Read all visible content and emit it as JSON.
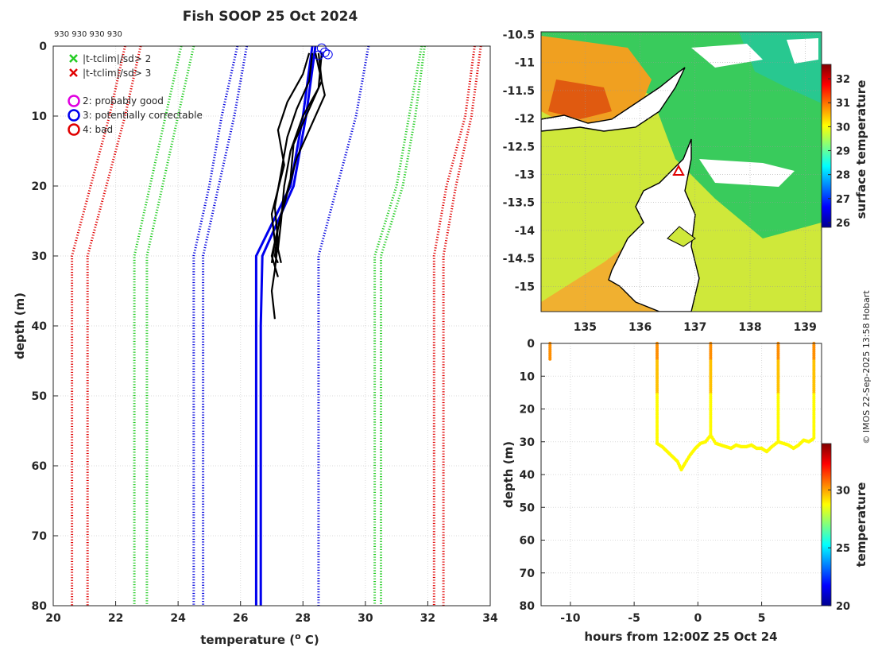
{
  "chart_data": [
    {
      "id": "profile",
      "type": "line",
      "title": "Fish SOOP 25 Oct 2024",
      "xlabel": "temperature (",
      "xlabel_unit": "o",
      "xlabel_end": " C)",
      "ylabel": "depth (m)",
      "xlim": [
        20,
        34
      ],
      "ylim": [
        0,
        80
      ],
      "x_ticks": [
        "20",
        "22",
        "24",
        "26",
        "28",
        "30",
        "32",
        "34"
      ],
      "y_ticks": [
        "0",
        "10",
        "20",
        "30",
        "40",
        "50",
        "60",
        "70",
        "80"
      ],
      "platform_labels": "930 930 930 930",
      "legend": {
        "flag_sd2": "|t-tclim|/sd> 2",
        "flag_sd3": "|t-tclim|/sd> 3",
        "qc2": "2: probably good",
        "qc3": "3: potentially correctable",
        "qc4": "4: bad"
      },
      "series": [
        {
          "name": "clim -3sd inner",
          "color": "#e00000",
          "style": "dotted",
          "points": [
            [
              22.8,
              0
            ],
            [
              22.3,
              10
            ],
            [
              21.7,
              20
            ],
            [
              21.1,
              30
            ],
            [
              21.1,
              80
            ]
          ]
        },
        {
          "name": "clim -3sd outer",
          "color": "#e00000",
          "style": "dotted",
          "points": [
            [
              22.3,
              0
            ],
            [
              21.8,
              10
            ],
            [
              21.2,
              20
            ],
            [
              20.6,
              30
            ],
            [
              20.6,
              80
            ]
          ]
        },
        {
          "name": "clim -2sd inner",
          "color": "#22cc22",
          "style": "dotted",
          "points": [
            [
              24.5,
              0
            ],
            [
              24.0,
              10
            ],
            [
              23.5,
              20
            ],
            [
              23.0,
              30
            ],
            [
              23.0,
              80
            ]
          ]
        },
        {
          "name": "clim -2sd outer",
          "color": "#22cc22",
          "style": "dotted",
          "points": [
            [
              24.1,
              0
            ],
            [
              23.6,
              10
            ],
            [
              23.1,
              20
            ],
            [
              22.6,
              30
            ],
            [
              22.6,
              80
            ]
          ]
        },
        {
          "name": "clim -1sd inner",
          "color": "#0000dd",
          "style": "dotted",
          "points": [
            [
              26.2,
              0
            ],
            [
              25.8,
              10
            ],
            [
              25.3,
              20
            ],
            [
              24.8,
              30
            ],
            [
              24.8,
              80
            ]
          ]
        },
        {
          "name": "clim -1sd outer",
          "color": "#0000dd",
          "style": "dotted",
          "points": [
            [
              25.9,
              0
            ],
            [
              25.4,
              10
            ],
            [
              25.0,
              20
            ],
            [
              24.5,
              30
            ],
            [
              24.5,
              80
            ]
          ]
        },
        {
          "name": "clim +1sd",
          "color": "#0000dd",
          "style": "dotted",
          "points": [
            [
              30.1,
              0
            ],
            [
              29.7,
              10
            ],
            [
              29.1,
              20
            ],
            [
              28.5,
              30
            ],
            [
              28.5,
              80
            ]
          ]
        },
        {
          "name": "clim +2sd inner",
          "color": "#22cc22",
          "style": "dotted",
          "points": [
            [
              31.9,
              0
            ],
            [
              31.6,
              10
            ],
            [
              31.2,
              20
            ],
            [
              30.5,
              30
            ],
            [
              30.5,
              80
            ]
          ]
        },
        {
          "name": "clim +2sd outer",
          "color": "#22cc22",
          "style": "dotted",
          "points": [
            [
              31.8,
              0
            ],
            [
              31.4,
              10
            ],
            [
              31.0,
              20
            ],
            [
              30.3,
              30
            ],
            [
              30.3,
              80
            ]
          ]
        },
        {
          "name": "clim +3sd inner",
          "color": "#e00000",
          "style": "dotted",
          "points": [
            [
              33.7,
              0
            ],
            [
              33.4,
              10
            ],
            [
              32.9,
              20
            ],
            [
              32.5,
              30
            ],
            [
              32.5,
              80
            ]
          ]
        },
        {
          "name": "clim +3sd outer",
          "color": "#e00000",
          "style": "dotted",
          "points": [
            [
              33.5,
              0
            ],
            [
              33.2,
              10
            ],
            [
              32.6,
              20
            ],
            [
              32.2,
              30
            ],
            [
              32.2,
              80
            ]
          ]
        },
        {
          "name": "climatology mean A",
          "color": "#0000ee",
          "style": "solid",
          "points": [
            [
              28.3,
              0
            ],
            [
              28.0,
              10
            ],
            [
              27.6,
              20
            ],
            [
              26.5,
              30
            ],
            [
              26.5,
              40
            ],
            [
              26.5,
              80
            ]
          ]
        },
        {
          "name": "climatology mean B",
          "color": "#0000ee",
          "style": "solid",
          "points": [
            [
              28.4,
              0
            ],
            [
              28.1,
              10
            ],
            [
              27.7,
              20
            ],
            [
              26.7,
              30
            ],
            [
              26.65,
              40
            ],
            [
              26.65,
              80
            ]
          ]
        },
        {
          "name": "profile 1",
          "color": "#000000",
          "style": "solid",
          "points": [
            [
              28.3,
              1
            ],
            [
              28.2,
              5
            ],
            [
              27.8,
              9
            ],
            [
              27.5,
              13
            ],
            [
              27.3,
              18
            ],
            [
              27.1,
              23
            ],
            [
              27.2,
              28
            ],
            [
              27.1,
              32
            ],
            [
              27.0,
              35
            ],
            [
              27.1,
              39
            ]
          ]
        },
        {
          "name": "profile 2",
          "color": "#000000",
          "style": "solid",
          "points": [
            [
              28.6,
              1
            ],
            [
              28.5,
              6
            ],
            [
              28.0,
              10
            ],
            [
              27.6,
              15
            ],
            [
              27.4,
              20
            ],
            [
              27.3,
              25
            ],
            [
              27.2,
              29
            ],
            [
              27.3,
              31
            ]
          ]
        },
        {
          "name": "profile 3",
          "color": "#000000",
          "style": "solid",
          "points": [
            [
              28.4,
              1
            ],
            [
              28.7,
              7
            ],
            [
              28.3,
              11
            ],
            [
              27.8,
              16
            ],
            [
              27.5,
              21
            ],
            [
              27.2,
              26
            ],
            [
              27.1,
              30
            ],
            [
              27.2,
              31
            ]
          ]
        },
        {
          "name": "profile 4",
          "color": "#000000",
          "style": "solid",
          "points": [
            [
              28.2,
              1
            ],
            [
              28.0,
              4
            ],
            [
              27.5,
              8
            ],
            [
              27.2,
              12
            ],
            [
              27.4,
              17
            ],
            [
              27.0,
              24
            ],
            [
              27.1,
              28
            ],
            [
              27.0,
              31
            ]
          ]
        },
        {
          "name": "profile 5",
          "color": "#000000",
          "style": "solid",
          "points": [
            [
              28.5,
              1
            ],
            [
              28.6,
              5
            ],
            [
              28.2,
              9
            ],
            [
              27.7,
              14
            ],
            [
              27.6,
              19
            ],
            [
              27.3,
              24
            ],
            [
              27.0,
              30
            ],
            [
              27.2,
              33
            ]
          ]
        }
      ],
      "qc3_markers": [
        [
          28.6,
          0.3
        ],
        [
          28.7,
          0.9
        ],
        [
          28.5,
          1.3
        ],
        [
          28.8,
          1.2
        ]
      ]
    },
    {
      "id": "map",
      "type": "heatmap",
      "colorbar_label": "surface temperature",
      "x_ticks": [
        "135",
        "136",
        "137",
        "138",
        "139"
      ],
      "x_values": [
        135,
        136,
        137,
        138,
        139
      ],
      "xlim": [
        134.2,
        139.3
      ],
      "y_ticks": [
        "-10.5",
        "-11",
        "-11.5",
        "-12",
        "-12.5",
        "-13",
        "-13.5",
        "-14",
        "-14.5",
        "-15"
      ],
      "y_values": [
        -10.5,
        -11,
        -11.5,
        -12,
        -12.5,
        -13,
        -13.5,
        -14,
        -14.5,
        -15
      ],
      "ylim": [
        -15.45,
        -10.45
      ],
      "colorbar_ticks": [
        "26",
        "27",
        "28",
        "29",
        "30",
        "31",
        "32"
      ],
      "colorbar_values": [
        26,
        27,
        28,
        29,
        30,
        31,
        32
      ],
      "crange": [
        25.8,
        32.6
      ],
      "profile_location": [
        136.7,
        -12.95
      ]
    },
    {
      "id": "timeseries",
      "type": "scatter",
      "xlabel": "hours from 12:00Z 25 Oct 24",
      "ylabel": "depth (m)",
      "x_ticks": [
        "-10",
        "-5",
        "0",
        "5"
      ],
      "x_values": [
        -10,
        -5,
        0,
        5
      ],
      "xlim": [
        -12.3,
        9.7
      ],
      "y_ticks": [
        "0",
        "10",
        "20",
        "30",
        "40",
        "50",
        "60",
        "70",
        "80"
      ],
      "ylim": [
        0,
        80
      ],
      "colorbar_label": "temperature",
      "colorbar_ticks": [
        "20",
        "25",
        "30"
      ],
      "colorbar_values": [
        20,
        25,
        30
      ],
      "crange": [
        20,
        34
      ],
      "casts": [
        {
          "t": -11.6,
          "zmax": 5
        },
        {
          "t": -3.2,
          "zmax": 30.5
        },
        {
          "t": 1.0,
          "zmax": 28
        },
        {
          "t": 6.3,
          "zmax": 30
        },
        {
          "t": 9.1,
          "zmax": 29
        }
      ],
      "bottom_track": [
        [
          -3.2,
          30.5
        ],
        [
          -2.8,
          31.5
        ],
        [
          -2.4,
          33
        ],
        [
          -2.0,
          34.5
        ],
        [
          -1.6,
          36
        ],
        [
          -1.3,
          38.5
        ],
        [
          -1.0,
          36.5
        ],
        [
          -0.6,
          34
        ],
        [
          -0.2,
          32
        ],
        [
          0.2,
          30.5
        ],
        [
          0.6,
          30
        ],
        [
          1.0,
          28
        ],
        [
          1.4,
          30.5
        ],
        [
          1.8,
          31
        ],
        [
          2.2,
          31.5
        ],
        [
          2.6,
          32
        ],
        [
          3.0,
          31
        ],
        [
          3.4,
          31.5
        ],
        [
          3.8,
          31.5
        ],
        [
          4.2,
          31
        ],
        [
          4.6,
          32
        ],
        [
          5.0,
          32
        ],
        [
          5.4,
          33
        ],
        [
          5.8,
          31.5
        ],
        [
          6.3,
          30
        ],
        [
          6.7,
          30.5
        ],
        [
          7.1,
          31
        ],
        [
          7.5,
          32
        ],
        [
          7.9,
          31
        ],
        [
          8.3,
          29.5
        ],
        [
          8.7,
          30
        ],
        [
          9.1,
          29
        ]
      ]
    }
  ],
  "watermark": "© IMOS 22-Sep-2025 13:58 Hobart"
}
